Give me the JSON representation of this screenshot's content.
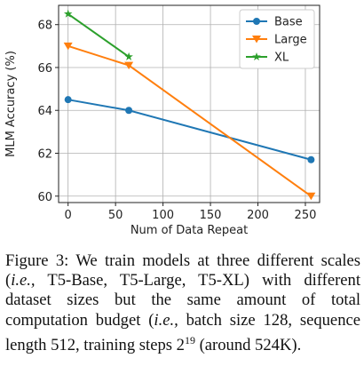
{
  "chart_data": {
    "type": "line",
    "xlabel": "Num of Data Repeat",
    "ylabel": "MLM Accuracy (%)",
    "xlim": [
      -10,
      265
    ],
    "ylim": [
      59.7,
      68.9
    ],
    "xticks": [
      0,
      50,
      100,
      150,
      200,
      250
    ],
    "yticks": [
      60,
      62,
      64,
      66,
      68
    ],
    "grid": true,
    "legend_position": "top-right",
    "series": [
      {
        "name": "Base",
        "color": "#1f77b4",
        "marker": "circle",
        "x": [
          0,
          64,
          256
        ],
        "y": [
          64.5,
          64.0,
          61.7
        ]
      },
      {
        "name": "Large",
        "color": "#ff7f0e",
        "marker": "triangle-down",
        "x": [
          0,
          64,
          256
        ],
        "y": [
          67.0,
          66.1,
          60.0
        ]
      },
      {
        "name": "XL",
        "color": "#2ca02c",
        "marker": "star",
        "x": [
          0,
          64
        ],
        "y": [
          68.5,
          66.5
        ]
      }
    ]
  },
  "caption": {
    "text": "Figure 3: We train models at three different scales (i.e., T5-Base, T5-Large, T5-XL) with different dataset sizes but the same amount of total computation budget (i.e., batch size 128, sequence length 512, training steps 2^19 (around 524K)."
  }
}
